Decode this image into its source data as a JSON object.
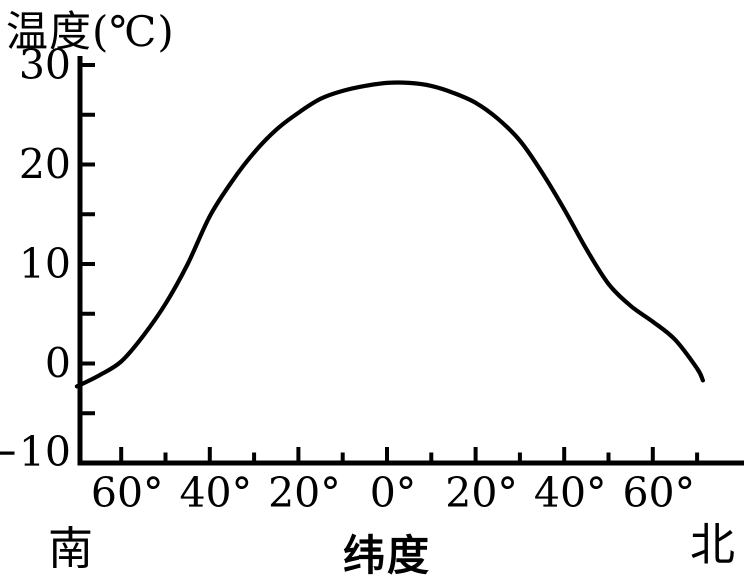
{
  "chart_data": {
    "type": "line",
    "title": "温度(℃)",
    "xlabel": "纬度",
    "x_direction_labels": {
      "south": "南",
      "north": "北"
    },
    "line_color": "#000000",
    "background_color": "#ffffff",
    "grid": false,
    "legend": false,
    "y_axis": {
      "tick_values": [
        30,
        20,
        10,
        0,
        -10
      ],
      "tick_labels": [
        "30",
        "20",
        "10",
        "0",
        "−10"
      ],
      "minor_tick_values": [
        25,
        15,
        5,
        -5
      ],
      "range": [
        -10,
        30
      ]
    },
    "x_axis": {
      "major_tick_latitudes": [
        -60,
        -40,
        -20,
        0,
        20,
        40,
        60
      ],
      "major_tick_labels": [
        "60°",
        "40°",
        "20°",
        "0°",
        "20°",
        "40°",
        "60°"
      ],
      "minor_tick_latitudes": [
        -50,
        -30,
        -10,
        10,
        30,
        50,
        70
      ],
      "range_latitude_deg": [
        -70,
        71.3
      ]
    },
    "series": [
      {
        "latitude_deg": [
          -70,
          -65,
          -60,
          -55,
          -50,
          -45,
          -40,
          -35,
          -30,
          -25,
          -20,
          -15,
          -10,
          -5,
          0,
          5,
          10,
          15,
          20,
          25,
          30,
          35,
          40,
          45,
          50,
          55,
          60,
          65,
          70,
          71.3
        ],
        "temperature_c": [
          -2.3,
          -1.2,
          0.2,
          2.8,
          6.0,
          10.0,
          14.8,
          18.3,
          21.2,
          23.5,
          25.2,
          26.6,
          27.4,
          27.9,
          28.2,
          28.2,
          27.9,
          27.2,
          26.2,
          24.6,
          22.4,
          19.2,
          15.5,
          11.5,
          8.0,
          5.8,
          4.2,
          2.4,
          -0.5,
          -1.7
        ]
      }
    ]
  }
}
